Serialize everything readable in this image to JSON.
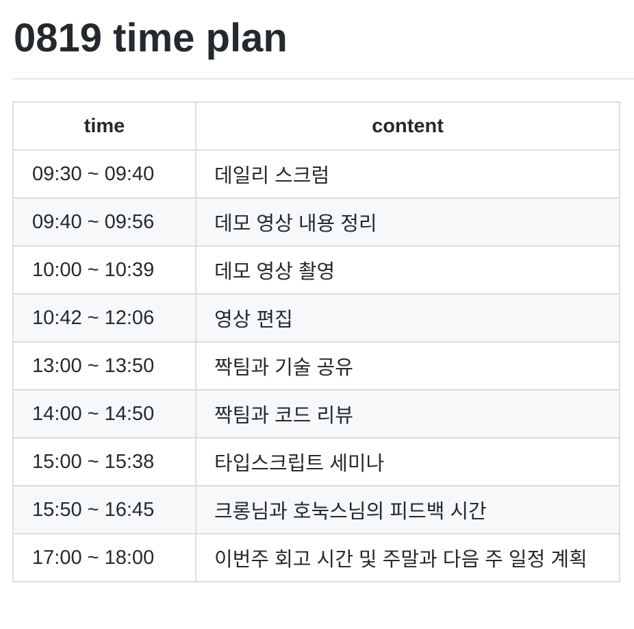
{
  "document": {
    "title": "0819 time plan"
  },
  "table": {
    "headers": {
      "time": "time",
      "content": "content"
    },
    "rows": [
      {
        "time": "09:30 ~ 09:40",
        "content": "데일리 스크럼"
      },
      {
        "time": "09:40 ~ 09:56",
        "content": "데모 영상 내용 정리"
      },
      {
        "time": "10:00 ~ 10:39",
        "content": "데모 영상 촬영"
      },
      {
        "time": "10:42 ~ 12:06",
        "content": "영상 편집"
      },
      {
        "time": "13:00 ~ 13:50",
        "content": "짝팀과 기술 공유"
      },
      {
        "time": "14:00 ~ 14:50",
        "content": "짝팀과 코드 리뷰"
      },
      {
        "time": "15:00 ~ 15:38",
        "content": "타입스크립트 세미나"
      },
      {
        "time": "15:50 ~ 16:45",
        "content": "크롱님과 호눅스님의 피드백 시간"
      },
      {
        "time": "17:00 ~ 18:00",
        "content": "이번주 회고 시간 및 주말과 다음 주 일정 계획"
      }
    ]
  },
  "colors": {
    "text": "#24292e",
    "border": "#dadee3",
    "stripe": "#f6f8fa",
    "divider": "#e4e7ea"
  }
}
